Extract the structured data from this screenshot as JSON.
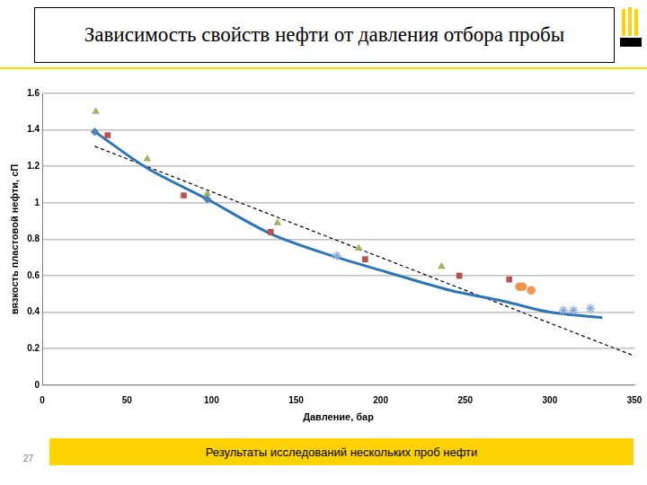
{
  "chart_data": {
    "type": "scatter",
    "title": "Зависимость свойств нефти от давления отбора пробы",
    "x_label": "Давление, бар",
    "y_label": "вязкость пластовой нефти, сП",
    "xlim": [
      0,
      350
    ],
    "xticks": [
      0,
      50,
      100,
      150,
      200,
      250,
      300,
      350
    ],
    "ylim": [
      0,
      1.6
    ],
    "yticks": [
      0,
      0.2,
      0.4,
      0.6,
      0.8,
      1,
      1.2,
      1.4,
      1.6
    ],
    "grid": "y",
    "series": [
      {
        "type": "line",
        "color": "#2e75b6",
        "marker": "none",
        "line_style": "solid",
        "x": [
          31,
          62,
          97.5,
          135,
          171,
          203.6,
          241,
          273,
          300,
          331
        ],
        "values": [
          1.39,
          1.19,
          1.02,
          0.83,
          0.71,
          0.62,
          0.52,
          0.46,
          0.4,
          0.37
        ]
      },
      {
        "type": "line",
        "color": "#000000",
        "marker": "none",
        "line_style": "dashed",
        "x": [
          31,
          350
        ],
        "values": [
          1.31,
          0.16
        ]
      },
      {
        "type": "scatter",
        "color": "#9bbb59",
        "marker": "triangle",
        "x": [
          31.6,
          62,
          97.5,
          139,
          187,
          236
        ],
        "values": [
          1.5,
          1.24,
          1.05,
          0.89,
          0.75,
          0.65
        ]
      },
      {
        "type": "scatter",
        "color": "#c0504d",
        "marker": "square",
        "x": [
          38.6,
          83.6,
          135,
          190.8,
          246.5,
          276
        ],
        "values": [
          1.37,
          1.04,
          0.84,
          0.69,
          0.6,
          0.58
        ]
      },
      {
        "type": "scatter",
        "color": "#4f81bd",
        "marker": "diamond",
        "x": [
          31,
          97.5
        ],
        "values": [
          1.39,
          1.02
        ]
      },
      {
        "type": "scatter",
        "color": "#8eaadb",
        "marker": "star",
        "x": [
          174,
          308,
          314,
          324
        ],
        "values": [
          0.71,
          0.41,
          0.41,
          0.42
        ]
      },
      {
        "type": "scatter",
        "color": "#f79646",
        "marker": "circle",
        "x": [
          282,
          284,
          289
        ],
        "values": [
          0.54,
          0.54,
          0.52
        ]
      }
    ],
    "annotations": [
      "Результаты исследований нескольких проб нефти",
      "27"
    ]
  }
}
